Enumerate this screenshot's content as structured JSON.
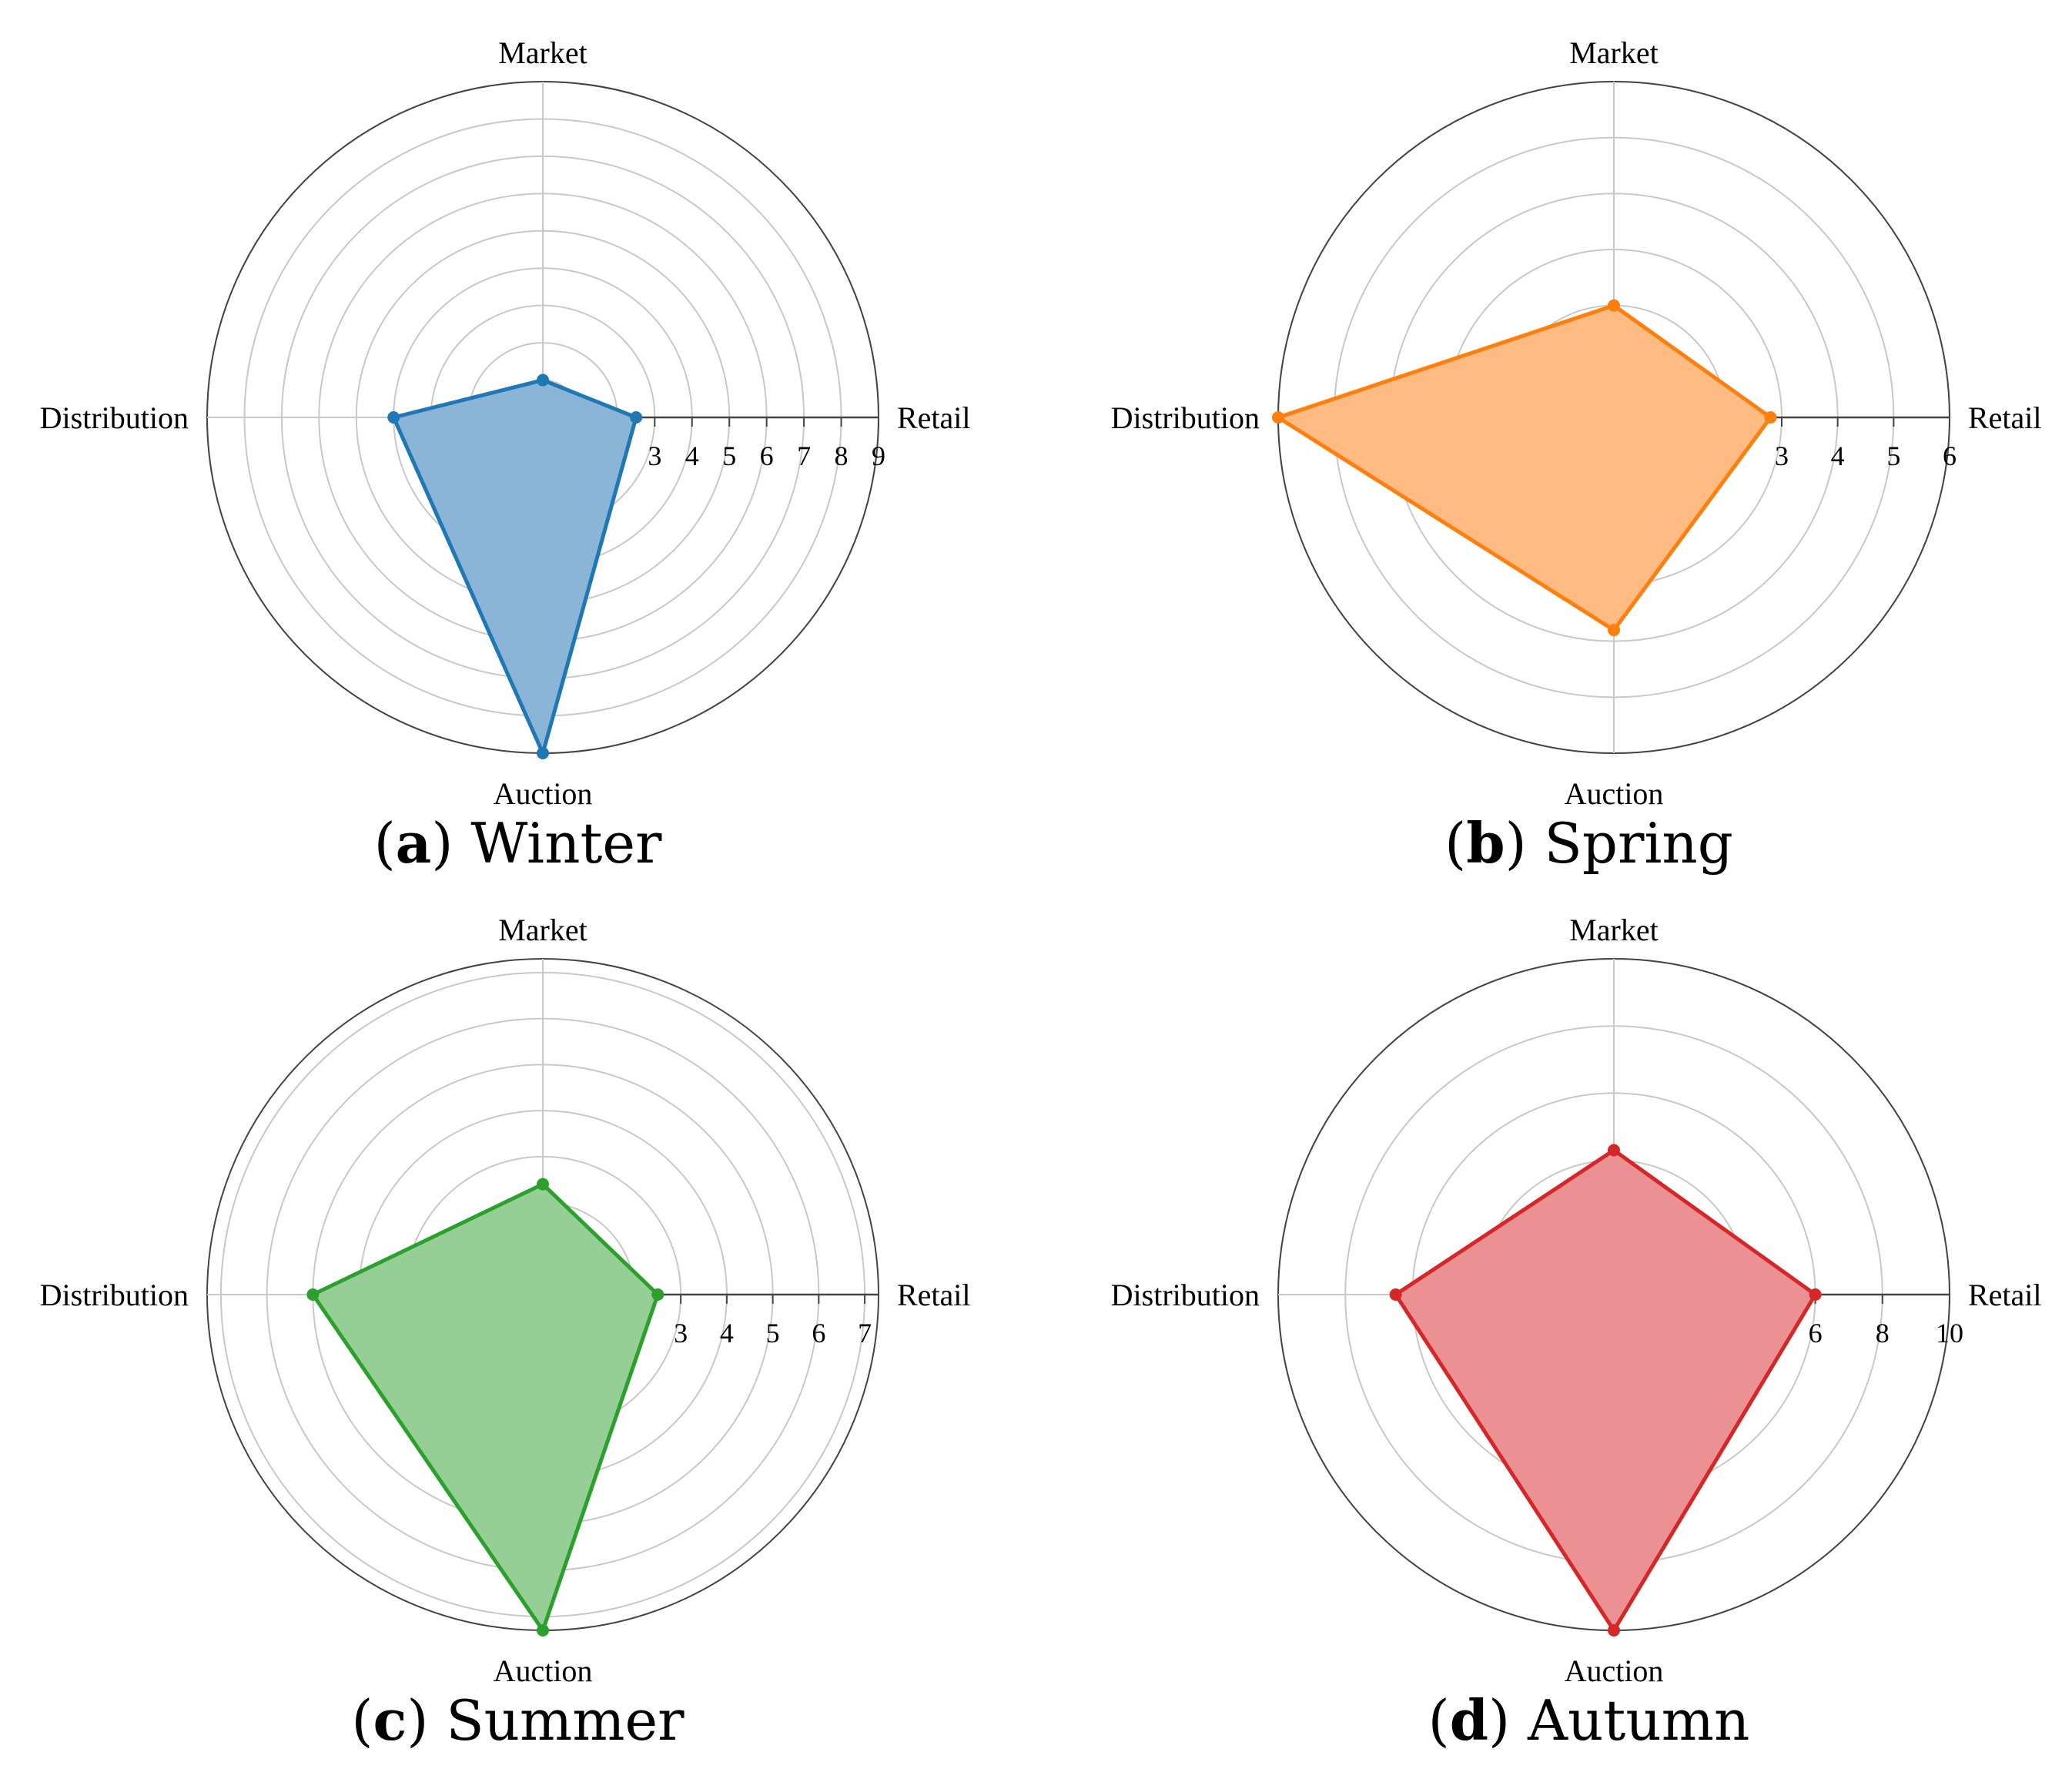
{
  "chart_data": [
    {
      "type": "radar",
      "panel": "a",
      "title": "Winter",
      "axes": [
        "Market",
        "Retail",
        "Auction",
        "Distribution"
      ],
      "values": [
        1,
        2.5,
        9,
        4
      ],
      "rmax": 9,
      "ticks": [
        0,
        1,
        2,
        3,
        4,
        5,
        6,
        7,
        8,
        9
      ],
      "color": "#1f77b4",
      "fill": "#8ab5d7"
    },
    {
      "type": "radar",
      "panel": "b",
      "title": "Spring",
      "axes": [
        "Market",
        "Retail",
        "Auction",
        "Distribution"
      ],
      "values": [
        2,
        2.8,
        3.8,
        6
      ],
      "rmax": 6,
      "ticks": [
        0,
        1,
        2,
        3,
        4,
        5,
        6
      ],
      "color": "#ff7f0e",
      "fill": "#ffbb82"
    },
    {
      "type": "radar",
      "panel": "c",
      "title": "Summer",
      "axes": [
        "Market",
        "Retail",
        "Auction",
        "Distribution"
      ],
      "values": [
        2.4,
        2.5,
        7.3,
        5
      ],
      "rmax": 7.3,
      "ticks": [
        0,
        1,
        2,
        3,
        4,
        5,
        6,
        7
      ],
      "color": "#2ca02c",
      "fill": "#95cf95"
    },
    {
      "type": "radar",
      "panel": "d",
      "title": "Autumn",
      "axes": [
        "Market",
        "Retail",
        "Auction",
        "Distribution"
      ],
      "values": [
        4.3,
        6,
        10,
        6.5
      ],
      "rmax": 10,
      "ticks": [
        0,
        2,
        4,
        6,
        8,
        10
      ],
      "color": "#d62728",
      "fill": "#eb9193"
    }
  ],
  "captions": [
    {
      "letter": "a",
      "season": "Winter"
    },
    {
      "letter": "b",
      "season": "Spring"
    },
    {
      "letter": "c",
      "season": "Summer"
    },
    {
      "letter": "d",
      "season": "Autumn"
    }
  ]
}
